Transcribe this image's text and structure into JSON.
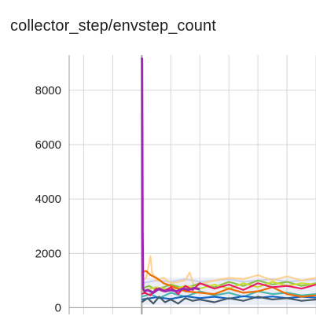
{
  "panel": {
    "title": "collector_step/envstep_count"
  },
  "chart_data": {
    "type": "line",
    "title": "collector_step/envstep_count",
    "xlabel": "",
    "ylabel": "",
    "y_ticks": [
      {
        "value": 0,
        "label": "0"
      },
      {
        "value": 2000,
        "label": "2000"
      },
      {
        "value": 4000,
        "label": "4000"
      },
      {
        "value": 6000,
        "label": "6000"
      },
      {
        "value": 8000,
        "label": "8000"
      }
    ],
    "x_ticks_note": "x-axis tick labels are cut off at the bottom edge",
    "ylim": [
      -250,
      9300
    ],
    "xlim": [
      -500,
      1200
    ],
    "grid": true,
    "series": [
      {
        "color": "#9c27b0",
        "points": [
          [
            0,
            9200
          ],
          [
            2,
            9150
          ],
          [
            5,
            2800
          ],
          [
            9,
            700
          ],
          [
            20,
            600
          ],
          [
            40,
            650
          ],
          [
            80,
            550
          ],
          [
            120,
            700
          ],
          [
            160,
            600
          ],
          [
            200,
            650
          ],
          [
            240,
            600
          ],
          [
            280,
            700
          ],
          [
            320,
            650
          ],
          [
            360,
            720
          ],
          [
            400,
            680
          ]
        ]
      },
      {
        "color": "#e91e63",
        "points": [
          [
            0,
            500
          ],
          [
            20,
            550
          ],
          [
            60,
            450
          ],
          [
            100,
            700
          ],
          [
            150,
            600
          ],
          [
            200,
            750
          ],
          [
            250,
            500
          ],
          [
            300,
            800
          ],
          [
            350,
            650
          ],
          [
            400,
            900
          ],
          [
            500,
            700
          ],
          [
            600,
            850
          ],
          [
            700,
            650
          ],
          [
            800,
            900
          ],
          [
            900,
            750
          ],
          [
            1000,
            800
          ],
          [
            1100,
            700
          ],
          [
            1200,
            850
          ]
        ]
      },
      {
        "color": "#455a64",
        "points": [
          [
            0,
            200
          ],
          [
            40,
            350
          ],
          [
            80,
            150
          ],
          [
            120,
            400
          ],
          [
            160,
            200
          ],
          [
            200,
            300
          ],
          [
            250,
            150
          ],
          [
            300,
            350
          ],
          [
            350,
            250
          ],
          [
            400,
            300
          ],
          [
            500,
            200
          ],
          [
            600,
            350
          ],
          [
            700,
            250
          ],
          [
            800,
            400
          ],
          [
            900,
            300
          ],
          [
            1000,
            350
          ],
          [
            1100,
            250
          ],
          [
            1200,
            300
          ]
        ]
      },
      {
        "color": "#ef6c00",
        "points": [
          [
            0,
            1300
          ],
          [
            30,
            1350
          ],
          [
            60,
            1200
          ],
          [
            100,
            1100
          ],
          [
            150,
            900
          ],
          [
            200,
            800
          ],
          [
            300,
            600
          ],
          [
            400,
            550
          ],
          [
            500,
            500
          ],
          [
            600,
            700
          ],
          [
            700,
            550
          ],
          [
            800,
            600
          ],
          [
            900,
            750
          ],
          [
            1000,
            500
          ],
          [
            1100,
            400
          ],
          [
            1200,
            450
          ]
        ]
      },
      {
        "color": "#ffcc80",
        "points": [
          [
            0,
            1000
          ],
          [
            30,
            1100
          ],
          [
            60,
            1900
          ],
          [
            70,
            1300
          ],
          [
            100,
            1000
          ],
          [
            150,
            1100
          ],
          [
            200,
            900
          ],
          [
            300,
            1000
          ],
          [
            330,
            1300
          ],
          [
            360,
            800
          ],
          [
            500,
            1000
          ],
          [
            600,
            1100
          ],
          [
            700,
            1050
          ],
          [
            800,
            1200
          ],
          [
            900,
            1000
          ],
          [
            1000,
            1150
          ],
          [
            1100,
            1000
          ],
          [
            1200,
            1100
          ]
        ]
      },
      {
        "color": "#8bc34a",
        "points": [
          [
            0,
            700
          ],
          [
            50,
            800
          ],
          [
            100,
            650
          ],
          [
            200,
            850
          ],
          [
            300,
            700
          ],
          [
            400,
            900
          ],
          [
            500,
            750
          ],
          [
            600,
            950
          ],
          [
            700,
            800
          ],
          [
            800,
            1000
          ],
          [
            900,
            850
          ],
          [
            1000,
            950
          ],
          [
            1100,
            800
          ],
          [
            1200,
            900
          ]
        ]
      },
      {
        "color": "#4db6ac",
        "points": [
          [
            0,
            400
          ],
          [
            60,
            500
          ],
          [
            120,
            350
          ],
          [
            200,
            550
          ],
          [
            300,
            400
          ],
          [
            400,
            600
          ],
          [
            500,
            450
          ],
          [
            600,
            550
          ],
          [
            700,
            400
          ],
          [
            800,
            600
          ],
          [
            900,
            500
          ],
          [
            1000,
            550
          ],
          [
            1100,
            450
          ],
          [
            1200,
            500
          ]
        ]
      },
      {
        "color": "#cddc39",
        "points": [
          [
            0,
            600
          ],
          [
            100,
            750
          ],
          [
            200,
            650
          ],
          [
            300,
            800
          ],
          [
            400,
            700
          ],
          [
            500,
            850
          ],
          [
            600,
            700
          ],
          [
            700,
            900
          ],
          [
            800,
            750
          ],
          [
            900,
            950
          ],
          [
            1000,
            800
          ],
          [
            1100,
            900
          ],
          [
            1200,
            850
          ]
        ]
      },
      {
        "color": "#c5cae9",
        "points": [
          [
            0,
            900
          ],
          [
            100,
            1000
          ],
          [
            200,
            950
          ],
          [
            300,
            1050
          ],
          [
            400,
            950
          ],
          [
            500,
            1000
          ],
          [
            600,
            1050
          ],
          [
            700,
            950
          ],
          [
            800,
            1000
          ],
          [
            900,
            1050
          ],
          [
            1000,
            950
          ],
          [
            1100,
            1000
          ],
          [
            1200,
            1050
          ]
        ]
      },
      {
        "color": "#1565c0",
        "points": [
          [
            0,
            300
          ],
          [
            100,
            380
          ],
          [
            200,
            320
          ],
          [
            300,
            420
          ],
          [
            400,
            350
          ],
          [
            500,
            400
          ],
          [
            600,
            330
          ],
          [
            700,
            420
          ],
          [
            800,
            360
          ],
          [
            900,
            410
          ],
          [
            1000,
            350
          ],
          [
            1100,
            400
          ],
          [
            1200,
            370
          ]
        ]
      }
    ]
  }
}
